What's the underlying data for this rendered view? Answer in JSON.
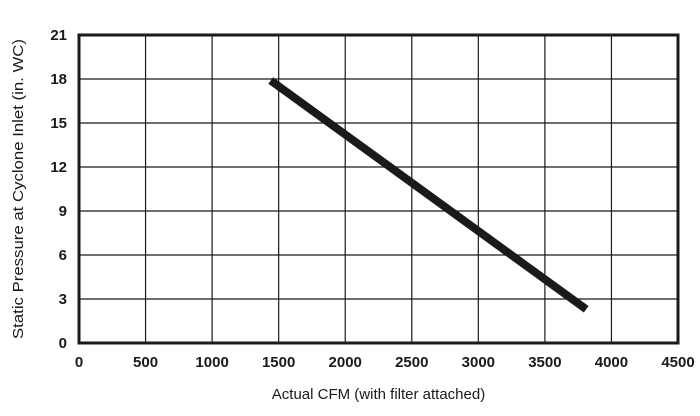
{
  "chart_data": {
    "type": "line",
    "title": "",
    "xlabel": "Actual CFM (with filter attached)",
    "ylabel": "Static Pressure at Cyclone Inlet (in. WC)",
    "xlim": [
      0,
      4500
    ],
    "ylim": [
      0,
      21
    ],
    "xticks": [
      "0",
      "500",
      "1000",
      "1500",
      "2000",
      "2500",
      "3000",
      "3500",
      "4000",
      "4500"
    ],
    "yticks": [
      "0",
      "3",
      "6",
      "9",
      "12",
      "15",
      "18",
      "21"
    ],
    "grid": true,
    "legend": "none",
    "series": [
      {
        "x": [
          1440,
          3810
        ],
        "y": [
          17.9,
          2.3
        ]
      }
    ],
    "colors": {
      "line": "#1a1a1a",
      "grid": "#1a1a1a",
      "text": "#1a1a1a"
    }
  }
}
